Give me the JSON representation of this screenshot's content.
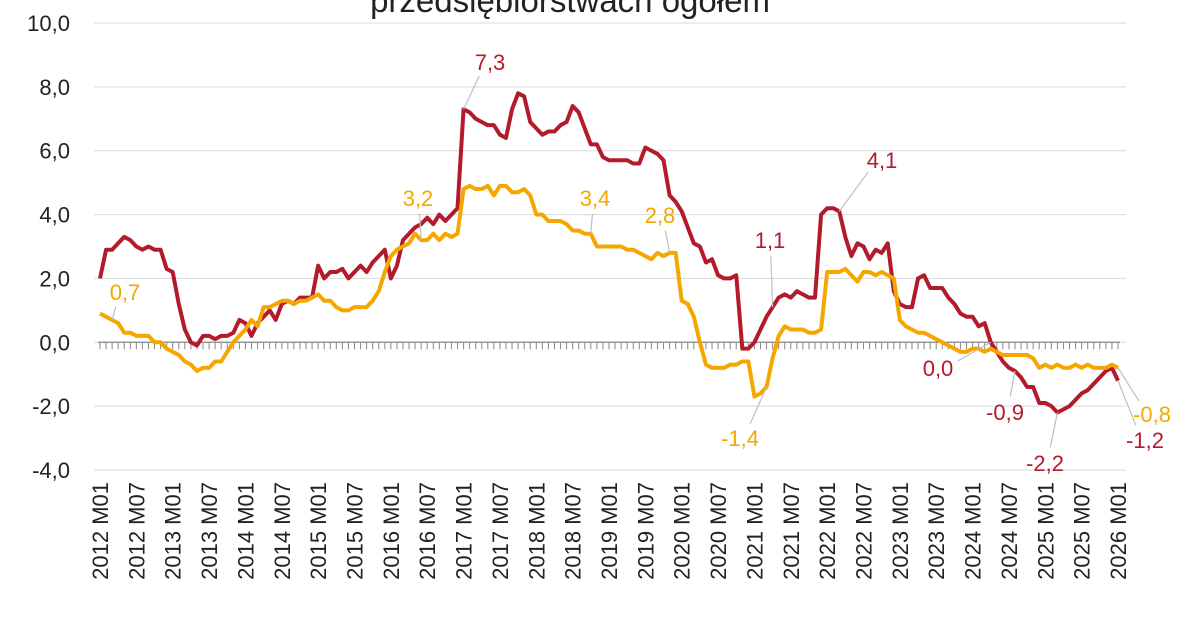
{
  "chart_data": {
    "type": "line",
    "title": "przedsiębiorstwach ogółem",
    "categories": [
      "2012 M01",
      null,
      null,
      null,
      null,
      null,
      "2012 M07",
      null,
      null,
      null,
      null,
      null,
      "2013 M01",
      null,
      null,
      null,
      null,
      null,
      "2013 M07",
      null,
      null,
      null,
      null,
      null,
      "2014 M01",
      null,
      null,
      null,
      null,
      null,
      "2014 M07",
      null,
      null,
      null,
      null,
      null,
      "2015 M01",
      null,
      null,
      null,
      null,
      null,
      "2015 M07",
      null,
      null,
      null,
      null,
      null,
      "2016 M01",
      null,
      null,
      null,
      null,
      null,
      "2016 M07",
      null,
      null,
      null,
      null,
      null,
      "2017 M01",
      null,
      null,
      null,
      null,
      null,
      "2017 M07",
      null,
      null,
      null,
      null,
      null,
      "2018 M01",
      null,
      null,
      null,
      null,
      null,
      "2018 M07",
      null,
      null,
      null,
      null,
      null,
      "2019 M01",
      null,
      null,
      null,
      null,
      null,
      "2019 M07",
      null,
      null,
      null,
      null,
      null,
      "2020 M01",
      null,
      null,
      null,
      null,
      null,
      "2020 M07",
      null,
      null,
      null,
      null,
      null,
      "2021 M01",
      null,
      null,
      null,
      null,
      null,
      "2021 M07",
      null,
      null,
      null,
      null,
      null,
      "2022 M01",
      null,
      null,
      null,
      null,
      null,
      "2022 M07",
      null,
      null,
      null,
      null,
      null,
      "2023 M01",
      null,
      null,
      null,
      null,
      null,
      "2023 M07",
      null,
      null,
      null,
      null,
      null,
      "2024 M01",
      null,
      null,
      null,
      null,
      null,
      "2024 M07",
      null,
      null,
      null,
      null,
      null,
      "2025 M01",
      null,
      null,
      null,
      null,
      null,
      "2025 M07",
      null,
      null,
      null,
      null,
      null,
      "2026 M01"
    ],
    "series": [
      {
        "color": "#b31b2c",
        "values": [
          2.0,
          2.9,
          2.9,
          3.1,
          3.3,
          3.2,
          3.0,
          2.9,
          3.0,
          2.9,
          2.9,
          2.3,
          2.2,
          1.2,
          0.4,
          0.0,
          -0.1,
          0.2,
          0.2,
          0.1,
          0.2,
          0.2,
          0.3,
          0.7,
          0.6,
          0.2,
          0.6,
          0.8,
          1.0,
          0.7,
          1.2,
          1.3,
          1.2,
          1.4,
          1.4,
          1.4,
          2.4,
          2.0,
          2.2,
          2.2,
          2.3,
          2.0,
          2.2,
          2.4,
          2.2,
          2.5,
          2.7,
          2.9,
          2.0,
          2.4,
          3.2,
          3.4,
          3.6,
          3.7,
          3.9,
          3.7,
          4.0,
          3.8,
          4.0,
          4.2,
          7.3,
          7.2,
          7.0,
          6.9,
          6.8,
          6.8,
          6.5,
          6.4,
          7.3,
          7.8,
          7.7,
          6.9,
          6.7,
          6.5,
          6.6,
          6.6,
          6.8,
          6.9,
          7.4,
          7.2,
          6.7,
          6.2,
          6.2,
          5.8,
          5.7,
          5.7,
          5.7,
          5.7,
          5.6,
          5.6,
          6.1,
          6.0,
          5.9,
          5.7,
          4.6,
          4.4,
          4.1,
          3.6,
          3.1,
          3.0,
          2.5,
          2.6,
          2.1,
          2.0,
          2.0,
          2.1,
          -0.2,
          -0.2,
          0.0,
          0.4,
          0.8,
          1.1,
          1.4,
          1.5,
          1.4,
          1.6,
          1.5,
          1.4,
          1.4,
          4.0,
          4.2,
          4.2,
          4.1,
          3.3,
          2.7,
          3.1,
          3.0,
          2.6,
          2.9,
          2.8,
          3.1,
          1.6,
          1.2,
          1.1,
          1.1,
          2.0,
          2.1,
          1.7,
          1.7,
          1.7,
          1.4,
          1.2,
          0.9,
          0.8,
          0.8,
          0.5,
          0.6,
          0.0,
          -0.3,
          -0.6,
          -0.8,
          -0.9,
          -1.1,
          -1.4,
          -1.4,
          -1.9,
          -1.9,
          -2.0,
          -2.2,
          -2.1,
          -2.0,
          -1.8,
          -1.6,
          -1.5,
          -1.3,
          -1.1,
          -0.9,
          -0.8,
          -1.2
        ],
        "value_labels": [
          null,
          null,
          null,
          null,
          null,
          null,
          null,
          null,
          null,
          null,
          null,
          null,
          null,
          null,
          null,
          null,
          null,
          null,
          null,
          null,
          null,
          null,
          null,
          null,
          null,
          null,
          null,
          null,
          null,
          null,
          null,
          null,
          null,
          null,
          null,
          null,
          null,
          null,
          null,
          null,
          null,
          null,
          null,
          null,
          null,
          null,
          null,
          null,
          null,
          null,
          null,
          null,
          null,
          null,
          null,
          null,
          null,
          null,
          null,
          null,
          "7,3",
          null,
          null,
          null,
          null,
          null,
          null,
          null,
          null,
          null,
          null,
          null,
          null,
          null,
          null,
          null,
          null,
          null,
          null,
          null,
          null,
          null,
          null,
          null,
          null,
          null,
          null,
          null,
          null,
          null,
          null,
          null,
          null,
          null,
          null,
          null,
          null,
          null,
          null,
          null,
          null,
          null,
          null,
          null,
          null,
          null,
          null,
          null,
          null,
          null,
          null,
          "1,1",
          null,
          null,
          null,
          null,
          null,
          null,
          null,
          null,
          null,
          null,
          "4,1",
          null,
          null,
          null,
          null,
          null,
          null,
          null,
          null,
          null,
          null,
          null,
          null,
          null,
          null,
          null,
          null,
          null,
          null,
          null,
          null,
          null,
          null,
          null,
          null,
          "0,0",
          null,
          null,
          null,
          "-0,9",
          null,
          null,
          null,
          null,
          null,
          null,
          "-2,2",
          null,
          null,
          null,
          null,
          null,
          null,
          null,
          null,
          null,
          "-1,2"
        ]
      },
      {
        "color": "#f5a700",
        "values": [
          0.9,
          0.8,
          0.7,
          0.6,
          0.3,
          0.3,
          0.2,
          0.2,
          0.2,
          0.0,
          0.0,
          -0.2,
          -0.3,
          -0.4,
          -0.6,
          -0.7,
          -0.9,
          -0.8,
          -0.8,
          -0.6,
          -0.6,
          -0.3,
          0.0,
          0.2,
          0.4,
          0.7,
          0.5,
          1.1,
          1.1,
          1.2,
          1.3,
          1.3,
          1.2,
          1.3,
          1.3,
          1.4,
          1.5,
          1.3,
          1.3,
          1.1,
          1.0,
          1.0,
          1.1,
          1.1,
          1.1,
          1.3,
          1.6,
          2.2,
          2.7,
          2.9,
          3.0,
          3.1,
          3.4,
          3.2,
          3.2,
          3.4,
          3.2,
          3.4,
          3.3,
          3.4,
          4.8,
          4.9,
          4.8,
          4.8,
          4.9,
          4.6,
          4.9,
          4.9,
          4.7,
          4.7,
          4.8,
          4.6,
          4.0,
          4.0,
          3.8,
          3.8,
          3.8,
          3.7,
          3.5,
          3.5,
          3.4,
          3.4,
          3.0,
          3.0,
          3.0,
          3.0,
          3.0,
          2.9,
          2.9,
          2.8,
          2.7,
          2.6,
          2.8,
          2.7,
          2.8,
          2.8,
          1.3,
          1.2,
          0.8,
          0.0,
          -0.7,
          -0.8,
          -0.8,
          -0.8,
          -0.7,
          -0.7,
          -0.6,
          -0.6,
          -1.7,
          -1.6,
          -1.4,
          -0.5,
          0.2,
          0.5,
          0.4,
          0.4,
          0.4,
          0.3,
          0.3,
          0.4,
          2.2,
          2.2,
          2.2,
          2.3,
          2.1,
          1.9,
          2.2,
          2.2,
          2.1,
          2.2,
          2.1,
          2.0,
          0.7,
          0.5,
          0.4,
          0.3,
          0.3,
          0.2,
          0.1,
          0.0,
          -0.1,
          -0.2,
          -0.3,
          -0.3,
          -0.2,
          -0.2,
          -0.3,
          -0.2,
          -0.3,
          -0.4,
          -0.4,
          -0.4,
          -0.4,
          -0.4,
          -0.5,
          -0.8,
          -0.7,
          -0.8,
          -0.7,
          -0.8,
          -0.8,
          -0.7,
          -0.8,
          -0.7,
          -0.8,
          -0.8,
          -0.8,
          -0.7,
          -0.8
        ],
        "value_labels": [
          null,
          null,
          "0,7",
          null,
          null,
          null,
          null,
          null,
          null,
          null,
          null,
          null,
          null,
          null,
          null,
          null,
          null,
          null,
          null,
          null,
          null,
          null,
          null,
          null,
          null,
          null,
          null,
          null,
          null,
          null,
          null,
          null,
          null,
          null,
          null,
          null,
          null,
          null,
          null,
          null,
          null,
          null,
          null,
          null,
          null,
          null,
          null,
          null,
          null,
          null,
          null,
          null,
          null,
          "3,2",
          null,
          null,
          null,
          null,
          null,
          null,
          null,
          null,
          null,
          null,
          null,
          null,
          null,
          null,
          null,
          null,
          null,
          null,
          null,
          null,
          null,
          null,
          null,
          null,
          null,
          null,
          null,
          "3,4",
          null,
          null,
          null,
          null,
          null,
          null,
          null,
          null,
          null,
          null,
          null,
          null,
          "2,8",
          null,
          null,
          null,
          null,
          null,
          null,
          null,
          null,
          null,
          null,
          null,
          null,
          null,
          null,
          null,
          "-1,4",
          null,
          null,
          null,
          null,
          null,
          null,
          null,
          null,
          null,
          null,
          null,
          null,
          null,
          null,
          null,
          null,
          null,
          null,
          null,
          null,
          null,
          null,
          null,
          null,
          null,
          null,
          null,
          null,
          null,
          null,
          null,
          null,
          null,
          null,
          null,
          null,
          null,
          null,
          null,
          null,
          null,
          null,
          null,
          null,
          null,
          null,
          null,
          null,
          null,
          null,
          null,
          null,
          null,
          null,
          null,
          null,
          null,
          "-0,8"
        ]
      }
    ],
    "ylim": [
      -4,
      10
    ],
    "yticks": [
      {
        "value": -4,
        "label": "-4,0"
      },
      {
        "value": -2,
        "label": "-2,0"
      },
      {
        "value": 0,
        "label": "0,0"
      },
      {
        "value": 2,
        "label": "2,0"
      },
      {
        "value": 4,
        "label": "4,0"
      },
      {
        "value": 6,
        "label": "6,0"
      },
      {
        "value": 8,
        "label": "8,0"
      },
      {
        "value": 10,
        "label": "10,0"
      }
    ],
    "grid": true
  }
}
